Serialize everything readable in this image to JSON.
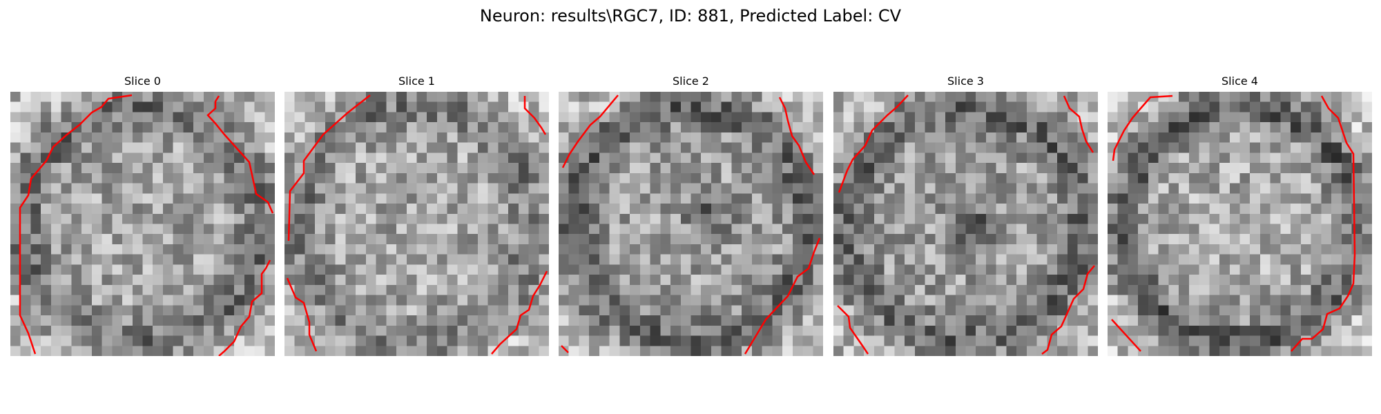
{
  "figure": {
    "title": "Neuron: results\\RGC7, ID: 881, Predicted Label: CV"
  },
  "panels": [
    {
      "title": "Slice 0"
    },
    {
      "title": "Slice 1"
    },
    {
      "title": "Slice 2"
    },
    {
      "title": "Slice 3"
    },
    {
      "title": "Slice 4"
    }
  ],
  "colors": {
    "contour": "#ff0000",
    "background": "#ffffff",
    "colormap": "gray"
  }
}
